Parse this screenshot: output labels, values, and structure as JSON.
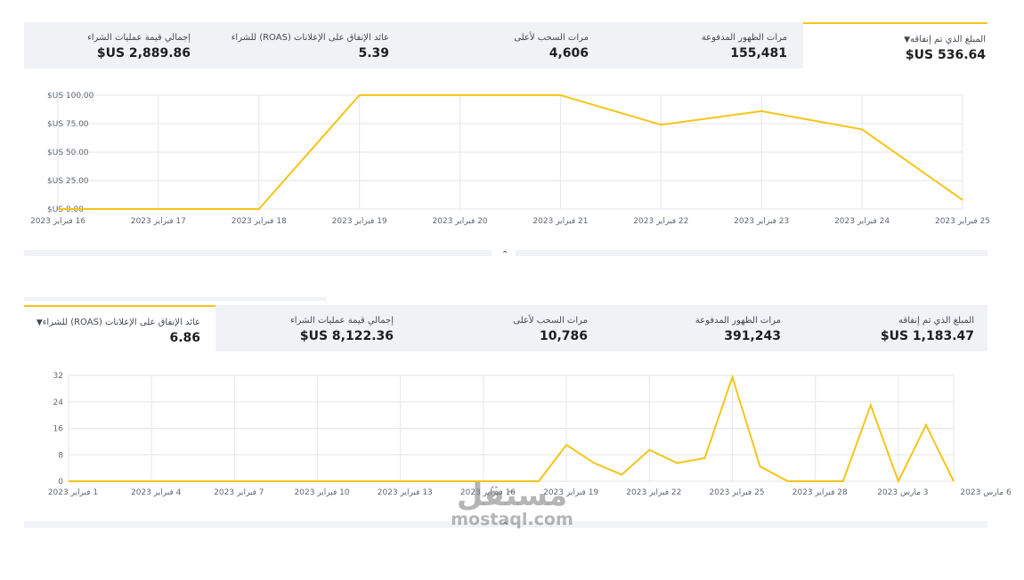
{
  "report1": {
    "metrics": [
      {
        "label": "المبلغ الذي تم إنفاقه",
        "value": "$US 536.64",
        "active": true
      },
      {
        "label": "مرات الظهور المدفوعة",
        "value": "155,481"
      },
      {
        "label": "مرات السحب لأعلى",
        "value": "4,606"
      },
      {
        "label": "عائد الإنفاق على الإعلانات (ROAS) للشراء",
        "value": "5.39"
      },
      {
        "label": "إجمالي قيمة عمليات الشراء",
        "value": "$US 2,889.86"
      }
    ],
    "dropdown_icon": "caret-down-icon",
    "collapse_icon": "chevron-up-icon"
  },
  "report2": {
    "metrics": [
      {
        "label": "المبلغ الذي تم إنفاقه",
        "value": "$US 1,183.47"
      },
      {
        "label": "مرات الظهور المدفوعة",
        "value": "391,243"
      },
      {
        "label": "مرات السحب لأعلى",
        "value": "10,786"
      },
      {
        "label": "إجمالي قيمة عمليات الشراء",
        "value": "$US 8,122.36"
      },
      {
        "label": "عائد الإنفاق على الإعلانات (ROAS) للشراء",
        "value": "6.86",
        "active": true
      }
    ],
    "dropdown_icon": "caret-down-icon",
    "collapse_icon": "chevron-up-icon"
  },
  "watermark": {
    "arabic": "مستقل",
    "latin": "mostaql.com"
  },
  "colors": {
    "line": "#f5c518",
    "grid": "#e4e6eb",
    "tick": "#606770",
    "metric_bg": "#f0f2f5"
  },
  "chart_data": [
    {
      "type": "line",
      "x": [
        "16 فبراير 2023",
        "17 فبراير 2023",
        "18 فبراير 2023",
        "19 فبراير 2023",
        "20 فبراير 2023",
        "21 فبراير 2023",
        "22 فبراير 2023",
        "23 فبراير 2023",
        "24 فبراير 2023",
        "25 فبراير 2023"
      ],
      "y_ticks": [
        "$US 0.00",
        "$US 25.00",
        "$US 50.00",
        "$US 75.00",
        "$US 100.00"
      ],
      "ylim": [
        0,
        100
      ],
      "series": [
        {
          "values": [
            0,
            0,
            0,
            100,
            100,
            100,
            74,
            86,
            70,
            8
          ]
        }
      ],
      "grid": true
    },
    {
      "type": "line",
      "x_ticks": [
        "1 فبراير 2023",
        "4 فبراير 2023",
        "7 فبراير 2023",
        "10 فبراير 2023",
        "13 فبراير 2023",
        "16 فبراير 2023",
        "19 فبراير 2023",
        "22 فبراير 2023",
        "25 فبراير 2023",
        "28 فبراير 2023",
        "3 مارس 2023",
        "6 مارس 2023"
      ],
      "y_ticks": [
        "0",
        "8",
        "16",
        "24",
        "32"
      ],
      "ylim": [
        0,
        32
      ],
      "series": [
        {
          "values": [
            0,
            0,
            0,
            0,
            0,
            0,
            0,
            0,
            0,
            0,
            0,
            0,
            0,
            0,
            0,
            0,
            0,
            0,
            11,
            5.5,
            2,
            9.5,
            5.5,
            7,
            31.5,
            4.5,
            0,
            0,
            0,
            23,
            0,
            17,
            0
          ]
        }
      ],
      "grid": true
    }
  ]
}
